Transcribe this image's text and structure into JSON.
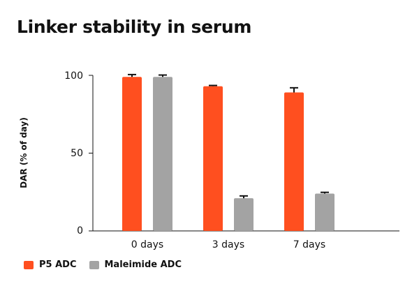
{
  "chart_data": {
    "type": "bar",
    "title": "Linker stability in serum",
    "xlabel": "",
    "ylabel": "DAR (% of day)",
    "categories": [
      "0 days",
      "3 days",
      "7 days"
    ],
    "ylim": [
      0,
      100
    ],
    "yticks": [
      "100",
      "50",
      "0"
    ],
    "series": [
      {
        "name": "P5 ADC",
        "color": "#ff4f1f",
        "values": [
          99,
          93,
          89
        ],
        "errors": [
          1.5,
          0.5,
          3
        ]
      },
      {
        "name": "Maleimide ADC",
        "color": "#a3a3a3",
        "values": [
          99,
          21,
          24
        ],
        "errors": [
          1.2,
          1.5,
          0.8
        ]
      }
    ],
    "grid": false,
    "legend_position": "bottom-left"
  }
}
